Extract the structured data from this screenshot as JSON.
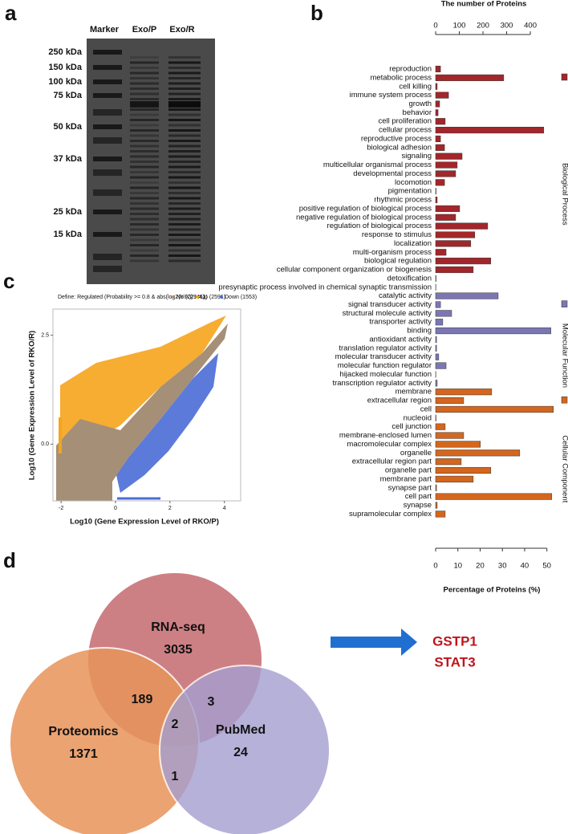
{
  "panel_labels": [
    "a",
    "b",
    "c",
    "d"
  ],
  "gel": {
    "lanes": [
      "Marker",
      "Exo/P",
      "Exo/R"
    ],
    "markers": [
      "250 kDa",
      "150 kDa",
      "100 kDa",
      "75 kDa",
      "50 kDa",
      "37 kDa",
      "25 kDa",
      "15 kDa"
    ]
  },
  "chart_data": [
    {
      "type": "bar",
      "orientation": "horizontal",
      "x2label": "The number of Proteins",
      "xlabel": "Percentage of Proteins (%)",
      "xlim": [
        0,
        53
      ],
      "xticks": [
        0,
        10,
        20,
        30,
        40,
        50
      ],
      "x2lim": [
        0,
        498
      ],
      "x2ticks": [
        0,
        100,
        200,
        300,
        400
      ],
      "series": [
        {
          "name": "Biological Process",
          "color": "#a3262a",
          "categories": [
            "reproduction",
            "metabolic process",
            "cell killing",
            "immune system process",
            "growth",
            "behavior",
            "cell proliferation",
            "cellular process",
            "reproductive process",
            "biological adhesion",
            "signaling",
            "multicellular organismal process",
            "developmental process",
            "locomotion",
            "pigmentation",
            "rhythmic process",
            "positive regulation of biological process",
            "negative regulation of biological process",
            "regulation of biological process",
            "response to stimulus",
            "localization",
            "multi-organism process",
            "biological regulation",
            "cellular component organization or biogenesis",
            "detoxification",
            "presynaptic process involved in chemical synaptic transmission"
          ],
          "values": [
            2.2,
            30.6,
            0.7,
            5.8,
            1.8,
            1.1,
            4.3,
            48.6,
            2.2,
            4.0,
            11.9,
            9.7,
            9.0,
            4.0,
            0.2,
            0.7,
            10.8,
            9.0,
            23.4,
            17.6,
            15.8,
            4.7,
            24.8,
            16.9,
            0.2,
            0.1
          ]
        },
        {
          "name": "Molecular Function",
          "color": "#7b77b5",
          "categories": [
            "catalytic activity",
            "signal transducer activity",
            "structural molecule activity",
            "transporter activity",
            "binding",
            "antioxidant activity",
            "translation regulator activity",
            "molecular transducer activity",
            "molecular function regulator",
            "hijacked molecular function",
            "transcription regulator activity"
          ],
          "values": [
            28.1,
            2.2,
            7.2,
            3.2,
            51.8,
            0.4,
            0.4,
            1.4,
            4.7,
            0.1,
            0.7
          ]
        },
        {
          "name": "Cellular Component",
          "color": "#d4661e",
          "categories": [
            "membrane",
            "extracellular region",
            "cell",
            "nucleoid",
            "cell junction",
            "membrane-enclosed lumen",
            "macromolecular complex",
            "organelle",
            "extracellular region part",
            "organelle part",
            "membrane part",
            "synapse part",
            "cell part",
            "synapse",
            "supramolecular complex"
          ],
          "values": [
            25.2,
            12.6,
            52.9,
            0.2,
            4.3,
            12.6,
            20.1,
            37.8,
            11.5,
            24.8,
            16.9,
            0.4,
            52.2,
            0.7,
            4.3
          ]
        }
      ]
    },
    {
      "type": "scatter",
      "title": "Define: Regulated (Probability >= 0.8 & abs(log2(Y/X)) >= 1)",
      "legend": [
        {
          "name": "No (22946)",
          "color": "#a58f77"
        },
        {
          "name": "Up (2591)",
          "color": "#f5a41c"
        },
        {
          "name": "Down (1553)",
          "color": "#4a6cd6"
        }
      ],
      "xlabel": "Log10 (Gene Expression Level of RKO/P)",
      "ylabel": "Log10 (Gene Expression Level of RKO/R)",
      "xlim": [
        -2.3,
        4.6
      ],
      "xticks": [
        -2,
        0,
        2,
        4
      ],
      "ylim": [
        -1.3,
        3.1
      ],
      "yticks": [
        {
          "value": 0,
          "label": "0.0"
        },
        2.5
      ]
    }
  ],
  "venn": {
    "sets": [
      {
        "name": "RNA-seq",
        "count": 3035
      },
      {
        "name": "Proteomics",
        "count": 1371
      },
      {
        "name": "PubMed",
        "count": 24
      }
    ],
    "intersections": {
      "rna_proteomics": 189,
      "rna_pubmed": 3,
      "all": 2,
      "proteomics_pubmed": 1
    }
  },
  "result": [
    "GSTP1",
    "STAT3"
  ]
}
